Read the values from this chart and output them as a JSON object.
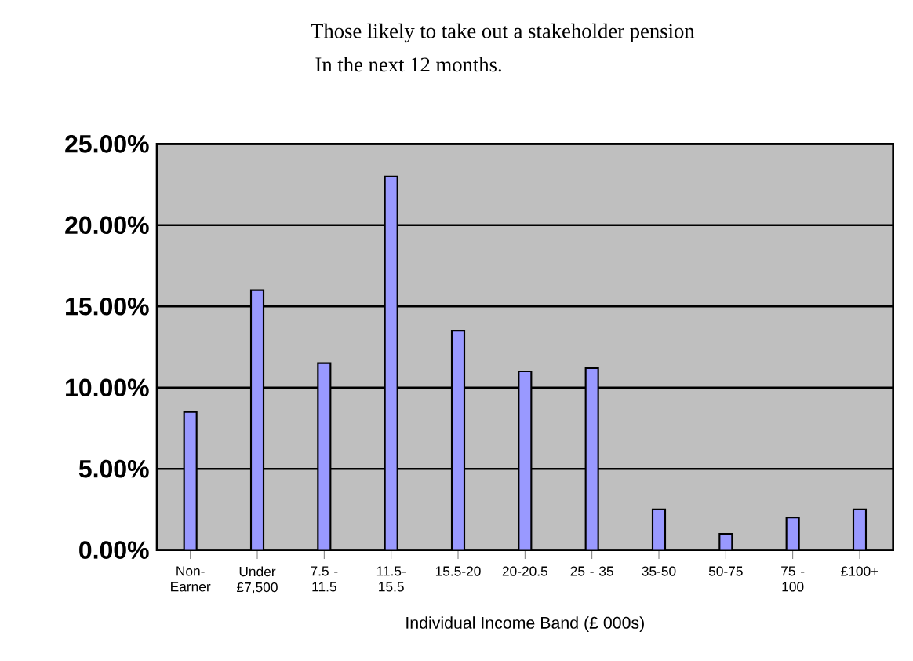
{
  "chart_data": {
    "type": "bar",
    "title": "Those likely to take out a stakeholder pension",
    "subtitle": "In the next 12 months.",
    "xlabel": "Individual Income Band (£ 000s)",
    "categories": [
      "Non- Earner",
      "Under £7,500",
      "7.5 - 11.5",
      "11.5- 15.5",
      "15.5-20",
      "20-20.5",
      "25 - 35",
      "35-50",
      "50-75",
      "75 - 100",
      "£100+"
    ],
    "values": [
      8.5,
      16,
      11.5,
      23,
      13.5,
      11,
      11.2,
      2.5,
      1,
      2,
      2.5
    ],
    "color": "#9999ff",
    "ylim": [
      0,
      25
    ],
    "yticks": [
      {
        "value": 0,
        "label": "0.00%"
      },
      {
        "value": 5,
        "label": "5.00%"
      },
      {
        "value": 10,
        "label": "10.00%"
      },
      {
        "value": 15,
        "label": "15.00%"
      },
      {
        "value": 20,
        "label": "20.00%"
      },
      {
        "value": 25,
        "label": "25.00%"
      }
    ],
    "grid": "y"
  }
}
